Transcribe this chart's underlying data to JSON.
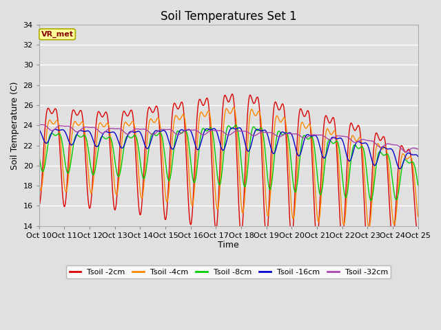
{
  "title": "Soil Temperatures Set 1",
  "xlabel": "Time",
  "ylabel": "Soil Temperature (C)",
  "ylim": [
    14,
    34
  ],
  "yticks": [
    14,
    16,
    18,
    20,
    22,
    24,
    26,
    28,
    30,
    32,
    34
  ],
  "xtick_labels": [
    "Oct 10",
    "Oct 11",
    "Oct 12",
    "Oct 13",
    "Oct 14",
    "Oct 15",
    "Oct 16",
    "Oct 17",
    "Oct 18",
    "Oct 19",
    "Oct 20",
    "Oct 21",
    "Oct 22",
    "Oct 23",
    "Oct 24",
    "Oct 25"
  ],
  "series_colors": [
    "#dd0000",
    "#ff8800",
    "#00cc00",
    "#0000cc",
    "#aa44aa"
  ],
  "series_labels": [
    "Tsoil -2cm",
    "Tsoil -4cm",
    "Tsoil -8cm",
    "Tsoil -16cm",
    "Tsoil -32cm"
  ],
  "bg_color": "#e0e0e0",
  "grid_color": "#ffffff",
  "title_fontsize": 12,
  "axis_label_fontsize": 9,
  "tick_fontsize": 8
}
